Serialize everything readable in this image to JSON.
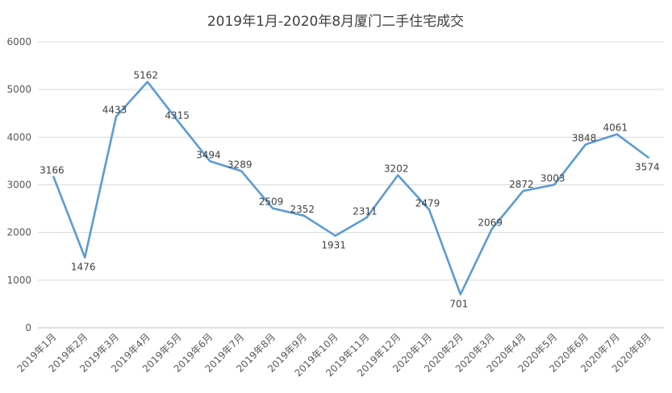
{
  "chart_data": {
    "type": "line",
    "title": "2019年1月-2020年8月厦门二手住宅成交",
    "xlabel": "",
    "ylabel": "",
    "ylim": [
      0,
      6000
    ],
    "yticks": [
      0,
      1000,
      2000,
      3000,
      4000,
      5000,
      6000
    ],
    "grid": true,
    "legend": "none",
    "categories": [
      "2019年1月",
      "2019年2月",
      "2019年3月",
      "2019年4月",
      "2019年5月",
      "2019年6月",
      "2019年7月",
      "2019年8月",
      "2019年9月",
      "2019年10月",
      "2019年11月",
      "2019年12月",
      "2020年1月",
      "2020年2月",
      "2020年3月",
      "2020年4月",
      "2020年5月",
      "2020年6月",
      "2020年7月",
      "2020年8月"
    ],
    "series": [
      {
        "values": [
          3166,
          1476,
          4433,
          5162,
          4315,
          3494,
          3289,
          2509,
          2352,
          1931,
          2311,
          3202,
          2479,
          701,
          2069,
          2872,
          3003,
          3848,
          4061,
          3574
        ],
        "color": "#5b9bd5"
      }
    ]
  }
}
